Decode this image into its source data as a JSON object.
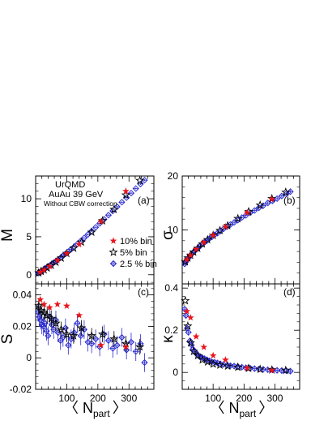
{
  "colors": {
    "red": "#e8141c",
    "black": "#000000",
    "blue": "#2a2ad0"
  },
  "chart_data": [
    {
      "panel": "(a)",
      "type": "scatter",
      "ylabel": "M",
      "xlabel": "",
      "xlim": [
        0,
        380
      ],
      "ylim": [
        -1.2,
        13
      ],
      "xticks": [
        100,
        200,
        300
      ],
      "xticklabels": [
        "",
        "",
        ""
      ],
      "yticks": [
        0,
        5,
        10
      ],
      "yticklabels": [
        "0",
        "5",
        "10"
      ],
      "annotations": [
        "UrQMD",
        "AuAu 39 GeV",
        "Without CBW correction"
      ],
      "legend_position": "bottom-right",
      "series": [
        {
          "name": "10% bin",
          "marker": "filled-star",
          "color": "red",
          "x": [
            15,
            27,
            45,
            70,
            100,
            140,
            210,
            290
          ],
          "y": [
            0.35,
            0.65,
            1.1,
            1.9,
            2.8,
            4.0,
            7.0,
            11.0
          ]
        },
        {
          "name": "5% bin",
          "marker": "open-star",
          "color": "black",
          "x": [
            10,
            18,
            27,
            37,
            50,
            65,
            82,
            100,
            122,
            147,
            180,
            215,
            252,
            290,
            335
          ],
          "y": [
            0.25,
            0.45,
            0.65,
            0.9,
            1.25,
            1.65,
            2.2,
            2.8,
            3.5,
            4.3,
            5.6,
            7.1,
            8.6,
            10.5,
            12.4
          ]
        },
        {
          "name": "2.5 % bin",
          "marker": "open-diamond",
          "color": "blue",
          "x": [
            8,
            12,
            16,
            20,
            25,
            30,
            35,
            40,
            46,
            52,
            58,
            65,
            72,
            80,
            88,
            96,
            105,
            114,
            124,
            134,
            145,
            156,
            168,
            180,
            193,
            206,
            220,
            234,
            248,
            262,
            277,
            292,
            307,
            322,
            337,
            350
          ],
          "y": [
            0.2,
            0.3,
            0.4,
            0.5,
            0.65,
            0.8,
            0.95,
            1.1,
            1.25,
            1.4,
            1.6,
            1.8,
            2.0,
            2.25,
            2.5,
            2.75,
            3.05,
            3.35,
            3.7,
            4.05,
            4.45,
            4.85,
            5.3,
            5.75,
            6.25,
            6.75,
            7.3,
            7.85,
            8.4,
            8.95,
            9.55,
            10.15,
            10.75,
            11.35,
            11.95,
            12.45
          ],
          "yerr": 0.12
        }
      ]
    },
    {
      "panel": "(b)",
      "type": "scatter",
      "ylabel": "σ",
      "xlabel": "",
      "xlim": [
        0,
        380
      ],
      "ylim": [
        0,
        20
      ],
      "xticks": [
        100,
        200,
        300
      ],
      "xticklabels": [
        "",
        "",
        ""
      ],
      "yticks": [
        10,
        20
      ],
      "yticklabels": [
        "10",
        "20"
      ],
      "series": [
        {
          "name": "10% bin",
          "marker": "filled-star",
          "color": "red",
          "x": [
            15,
            27,
            45,
            70,
            100,
            140,
            210,
            290
          ],
          "y": [
            4.5,
            5.3,
            6.4,
            7.7,
            9.0,
            10.6,
            13.2,
            15.7
          ]
        },
        {
          "name": "5% bin",
          "marker": "open-star",
          "color": "black",
          "x": [
            10,
            18,
            27,
            37,
            50,
            65,
            82,
            100,
            122,
            147,
            180,
            215,
            252,
            290,
            335
          ],
          "y": [
            4.1,
            4.8,
            5.3,
            5.9,
            6.6,
            7.4,
            8.2,
            9.0,
            9.9,
            10.8,
            12.1,
            13.4,
            14.6,
            15.8,
            17.0
          ]
        },
        {
          "name": "2.5 % bin",
          "marker": "open-diamond",
          "color": "blue",
          "x": [
            8,
            12,
            16,
            20,
            25,
            30,
            35,
            40,
            46,
            52,
            58,
            65,
            72,
            80,
            88,
            96,
            105,
            114,
            124,
            134,
            145,
            156,
            168,
            180,
            193,
            206,
            220,
            234,
            248,
            262,
            277,
            292,
            307,
            322,
            337,
            350
          ],
          "y": [
            3.7,
            4.1,
            4.5,
            4.8,
            5.1,
            5.5,
            5.8,
            6.1,
            6.4,
            6.7,
            7.0,
            7.4,
            7.7,
            8.0,
            8.4,
            8.7,
            9.1,
            9.4,
            9.8,
            10.2,
            10.6,
            11.0,
            11.4,
            11.8,
            12.3,
            12.7,
            13.2,
            13.6,
            14.1,
            14.5,
            15.0,
            15.4,
            15.8,
            16.3,
            16.7,
            17.1
          ],
          "yerr": 0.3
        }
      ]
    },
    {
      "panel": "(c)",
      "type": "scatter",
      "ylabel": "S",
      "xlabel": "〈 N",
      "xlabel_sub": "part",
      "xlabel_end": "〉",
      "xlim": [
        0,
        380
      ],
      "ylim": [
        -0.02,
        0.047
      ],
      "xticks": [
        100,
        200,
        300
      ],
      "xticklabels": [
        "100",
        "200",
        "300"
      ],
      "yticks": [
        -0.02,
        0,
        0.02,
        0.04
      ],
      "yticklabels": [
        "-0.02",
        "0",
        "0.02",
        "0.04"
      ],
      "series": [
        {
          "name": "10% bin",
          "marker": "filled-star",
          "color": "red",
          "x": [
            15,
            27,
            45,
            70,
            100,
            140,
            210,
            290
          ],
          "y": [
            0.037,
            0.034,
            0.032,
            0.034,
            0.033,
            0.027,
            0.008,
            0.007
          ]
        },
        {
          "name": "5% bin",
          "marker": "open-star",
          "color": "black",
          "x": [
            10,
            18,
            27,
            37,
            50,
            65,
            82,
            100,
            122,
            147,
            180,
            215,
            252,
            290,
            335
          ],
          "y": [
            0.033,
            0.03,
            0.029,
            0.027,
            0.025,
            0.022,
            0.018,
            0.015,
            0.014,
            0.019,
            0.014,
            0.015,
            0.012,
            0.009,
            0.007
          ],
          "yerr": 0.005
        },
        {
          "name": "2.5 % bin",
          "marker": "open-diamond",
          "color": "blue",
          "x": [
            8,
            12,
            16,
            20,
            25,
            30,
            35,
            40,
            46,
            52,
            58,
            65,
            72,
            80,
            88,
            96,
            105,
            114,
            124,
            134,
            145,
            156,
            168,
            180,
            193,
            206,
            220,
            234,
            248,
            262,
            277,
            292,
            307,
            322,
            337,
            350
          ],
          "y": [
            0.029,
            0.026,
            0.024,
            0.021,
            0.02,
            0.022,
            0.017,
            0.014,
            0.026,
            0.021,
            0.018,
            0.024,
            0.016,
            0.011,
            0.013,
            0.019,
            0.008,
            0.012,
            0.016,
            0.022,
            0.014,
            0.018,
            0.01,
            0.009,
            0.012,
            0.007,
            0.015,
            0.011,
            0.006,
            0.008,
            0.013,
            0.005,
            0.01,
            0.004,
            0.009,
            -0.003
          ],
          "yerr": 0.006
        }
      ]
    },
    {
      "panel": "(d)",
      "type": "scatter",
      "ylabel": "κ",
      "xlabel": "〈 N",
      "xlabel_sub": "part",
      "xlabel_end": "〉",
      "xlim": [
        0,
        380
      ],
      "ylim": [
        -0.08,
        0.42
      ],
      "xticks": [
        100,
        200,
        300
      ],
      "xticklabels": [
        "100",
        "200",
        "300"
      ],
      "yticks": [
        0,
        0.2,
        0.4
      ],
      "yticklabels": [
        "0",
        "0.2",
        "0.4"
      ],
      "series": [
        {
          "name": "10% bin",
          "marker": "filled-star",
          "color": "red",
          "x": [
            15,
            27,
            45,
            70,
            100,
            140,
            210,
            290
          ],
          "y": [
            0.29,
            0.26,
            0.17,
            0.12,
            0.08,
            0.06,
            0.02,
            0.01
          ]
        },
        {
          "name": "5% bin",
          "marker": "open-star",
          "color": "black",
          "x": [
            10,
            18,
            27,
            37,
            50,
            65,
            82,
            100,
            122,
            147,
            180,
            215,
            252,
            290,
            335
          ],
          "y": [
            0.34,
            0.22,
            0.14,
            0.1,
            0.08,
            0.06,
            0.05,
            0.04,
            0.035,
            0.03,
            0.025,
            0.02,
            0.015,
            0.012,
            0.01
          ]
        },
        {
          "name": "2.5 % bin",
          "marker": "open-diamond",
          "color": "blue",
          "x": [
            8,
            12,
            16,
            20,
            25,
            30,
            35,
            40,
            46,
            52,
            58,
            65,
            72,
            80,
            88,
            96,
            105,
            114,
            124,
            134,
            145,
            156,
            168,
            180,
            193,
            206,
            220,
            234,
            248,
            262,
            277,
            292,
            307,
            322,
            337,
            350
          ],
          "y": [
            0.3,
            0.27,
            0.21,
            0.19,
            0.15,
            0.13,
            0.11,
            0.1,
            0.09,
            0.08,
            0.075,
            0.07,
            0.065,
            0.06,
            0.055,
            0.05,
            0.048,
            0.045,
            0.04,
            0.038,
            0.035,
            0.032,
            0.03,
            0.028,
            0.025,
            0.022,
            0.02,
            0.018,
            0.016,
            0.015,
            0.013,
            0.012,
            0.01,
            0.009,
            0.008,
            0.006
          ],
          "yerr": 0.015
        }
      ]
    }
  ]
}
